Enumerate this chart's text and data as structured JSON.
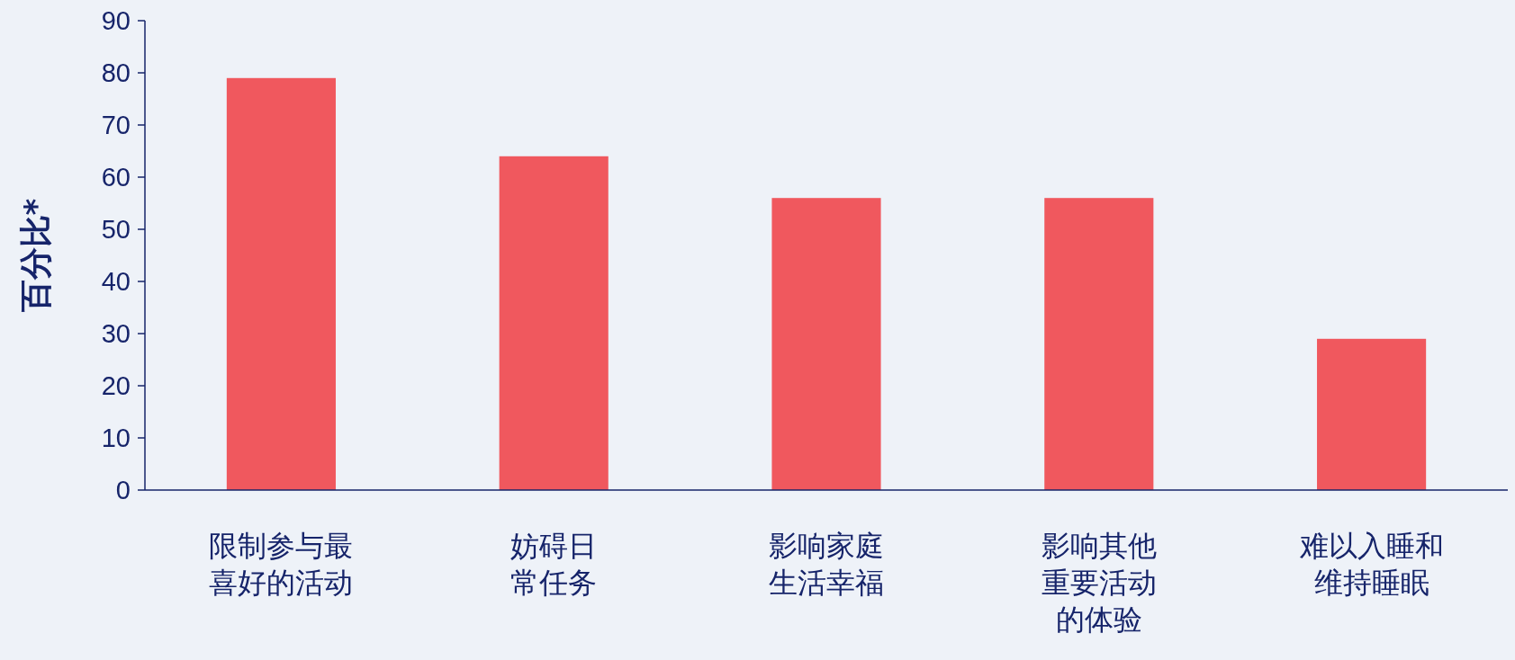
{
  "chart_data": {
    "type": "bar",
    "ylabel": "百分比*",
    "categories": [
      "限制参与最喜好的活动",
      "妨碍日常任务",
      "影响家庭生活幸福",
      "影响其他重要活动的体验",
      "难以入睡和维持睡眠"
    ],
    "values": [
      79,
      64,
      56,
      56,
      29
    ],
    "color": "#f0585e",
    "ylim": [
      0,
      90
    ],
    "yticks": [
      0,
      10,
      20,
      30,
      40,
      50,
      60,
      70,
      80,
      90
    ],
    "grid": false
  }
}
